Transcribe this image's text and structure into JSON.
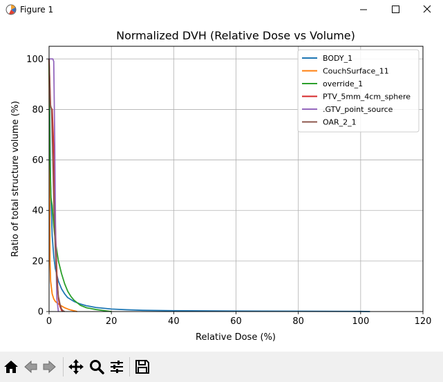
{
  "window": {
    "title": "Figure 1"
  },
  "toolbar": {
    "buttons": [
      {
        "name": "home-icon",
        "label": "Home"
      },
      {
        "name": "back-icon",
        "label": "Back"
      },
      {
        "name": "forward-icon",
        "label": "Forward"
      },
      {
        "name": "pan-icon",
        "label": "Pan"
      },
      {
        "name": "zoom-icon",
        "label": "Zoom"
      },
      {
        "name": "configure-subplots-icon",
        "label": "Subplots"
      },
      {
        "name": "save-icon",
        "label": "Save"
      }
    ]
  },
  "colors": {
    "BODY_1": "#1f77b4",
    "CouchSurface_11": "#ff7f0e",
    "override_1": "#2ca02c",
    "PTV_5mm_4cm_sphere": "#d62728",
    ".GTV_point_source": "#9467bd",
    "OAR_2_1": "#8c564b"
  },
  "chart_data": {
    "type": "line",
    "title": "Normalized DVH (Relative Dose vs Volume)",
    "xlabel": "Relative Dose (%)",
    "ylabel": "Ratio of total structure volume (%)",
    "xlim": [
      0,
      120
    ],
    "ylim": [
      0,
      105
    ],
    "xticks": [
      0,
      20,
      40,
      60,
      80,
      100,
      120
    ],
    "yticks": [
      0,
      20,
      40,
      60,
      80,
      100
    ],
    "grid": true,
    "legend_position": "top-right",
    "series": [
      {
        "name": "BODY_1",
        "x": [
          0,
          0.5,
          1,
          1.5,
          2,
          3,
          4,
          5,
          6,
          8,
          10,
          12,
          15,
          20,
          25,
          30,
          40,
          60,
          80,
          100,
          103
        ],
        "y": [
          100,
          50,
          30,
          22,
          17,
          12,
          9,
          7,
          5.5,
          4,
          3,
          2.3,
          1.6,
          1,
          0.7,
          0.5,
          0.35,
          0.2,
          0.12,
          0.05,
          0
        ]
      },
      {
        "name": "CouchSurface_11",
        "x": [
          0,
          0.3,
          0.5,
          1,
          1.5,
          2,
          3,
          4,
          5,
          6,
          7,
          8,
          9
        ],
        "y": [
          100,
          20,
          12,
          7,
          5,
          4,
          3,
          2.2,
          1.5,
          1,
          0.6,
          0.3,
          0
        ]
      },
      {
        "name": "override_1",
        "x": [
          0,
          0.3,
          0.6,
          1,
          1.5,
          2,
          3,
          4,
          5,
          6,
          7,
          8,
          10,
          12,
          15,
          18,
          20
        ],
        "y": [
          100,
          60,
          45,
          42,
          34,
          28,
          20,
          15,
          11,
          8,
          6,
          4.5,
          2.5,
          1.5,
          0.8,
          0.3,
          0
        ]
      },
      {
        "name": "PTV_5mm_4cm_sphere",
        "x": [
          0,
          0.5,
          1,
          1.5,
          2,
          2.5,
          3,
          3.5,
          4,
          4.5
        ],
        "y": [
          100,
          81,
          80,
          65,
          35,
          15,
          5,
          2,
          0.5,
          0
        ]
      },
      {
        "name": ".GTV_point_source",
        "x": [
          0,
          1.2,
          1.5,
          1.8,
          2.1,
          2.5,
          3
        ],
        "y": [
          100,
          100,
          99,
          70,
          30,
          5,
          0
        ]
      },
      {
        "name": "OAR_2_1",
        "x": [
          0,
          0.4,
          0.8,
          1.2,
          1.6,
          2,
          2.5,
          3,
          3.5,
          4,
          4.5,
          5
        ],
        "y": [
          100,
          82,
          80,
          60,
          40,
          25,
          12,
          6,
          3,
          1,
          0.3,
          0
        ]
      }
    ]
  }
}
